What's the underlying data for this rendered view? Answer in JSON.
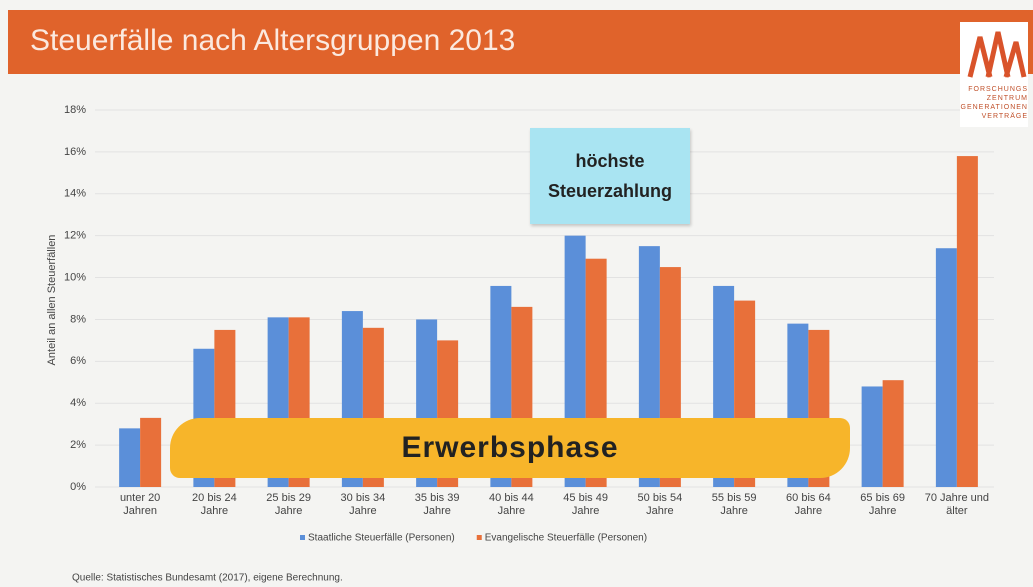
{
  "chart_data": {
    "type": "bar",
    "title": "Steuerfälle nach Altersgruppen 2013",
    "y_label": "Anteil an allen Steuerfällen",
    "categories": [
      "unter 20 Jahren",
      "20 bis 24 Jahre",
      "25 bis 29 Jahre",
      "30 bis 34 Jahre",
      "35 bis 39 Jahre",
      "40 bis 44 Jahre",
      "45 bis 49 Jahre",
      "50 bis 54 Jahre",
      "55 bis 59 Jahre",
      "60 bis 64 Jahre",
      "65 bis 69 Jahre",
      "70 Jahre und älter"
    ],
    "series": [
      {
        "name": "Staatliche Steuerfälle (Personen)",
        "color": "#5b8fd9",
        "values": [
          2.8,
          6.6,
          8.1,
          8.4,
          8.0,
          9.6,
          12.0,
          11.5,
          9.6,
          7.8,
          4.8,
          11.4
        ]
      },
      {
        "name": "Evangelische Steuerfälle (Personen)",
        "color": "#e8703a",
        "values": [
          3.3,
          7.5,
          8.1,
          7.6,
          7.0,
          8.6,
          10.9,
          10.5,
          8.9,
          7.5,
          5.1,
          15.8
        ]
      }
    ],
    "ylim": [
      0,
      18
    ],
    "yticks": [
      {
        "value": 0,
        "label": "0%"
      },
      {
        "value": 2,
        "label": "2%"
      },
      {
        "value": 4,
        "label": "4%"
      },
      {
        "value": 6,
        "label": "6%"
      },
      {
        "value": 8,
        "label": "8%"
      },
      {
        "value": 10,
        "label": "10%"
      },
      {
        "value": 12,
        "label": "12%"
      },
      {
        "value": 14,
        "label": "14%"
      },
      {
        "value": 16,
        "label": "16%"
      },
      {
        "value": 18,
        "label": "18%"
      }
    ],
    "grid": true,
    "legend": "bottom",
    "annotations": [
      "höchste Steuerzahlung",
      "Erwerbsphase"
    ],
    "source": "Quelle: Statistisches Bundesamt (2017), eigene Berechnung."
  },
  "logo": {
    "lines": [
      "FORSCHUNGS",
      "ZENTRUM",
      "GENERATIONEN",
      "VERTRÄGE"
    ]
  }
}
